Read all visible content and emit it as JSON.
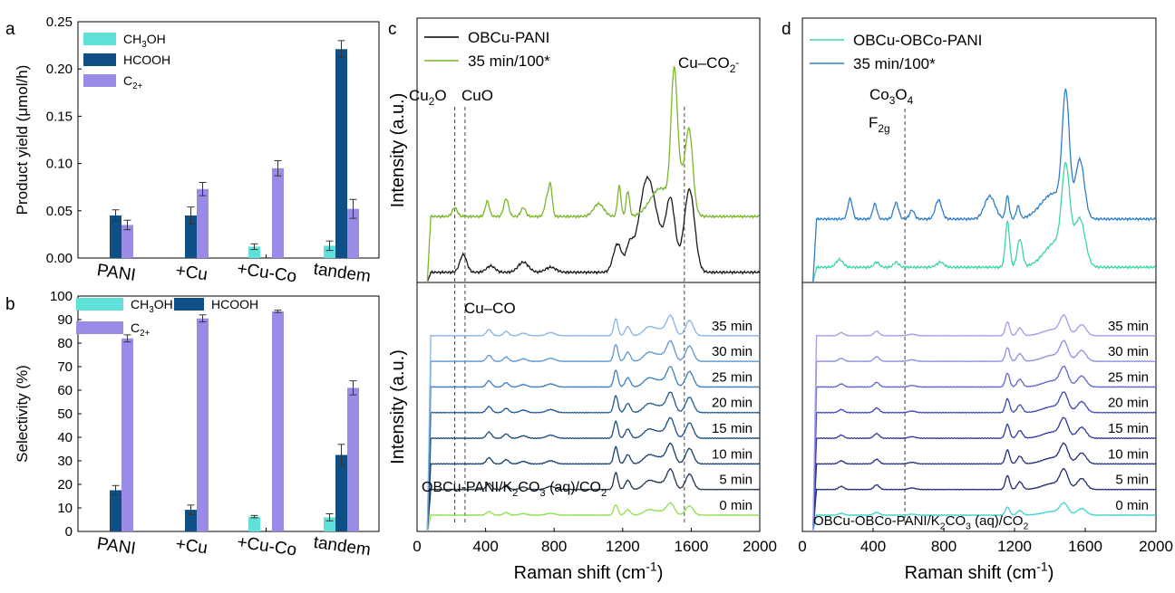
{
  "panels": {
    "a": {
      "letter": "a"
    },
    "b": {
      "letter": "b"
    },
    "c": {
      "letter": "c"
    },
    "d": {
      "letter": "d"
    }
  },
  "colors": {
    "ch3oh": "#5fe0d8",
    "hcooh": "#0f4f86",
    "c2": "#9b8be6",
    "errbar": "#333333"
  },
  "chart_data": [
    {
      "id": "a",
      "type": "bar",
      "ylabel": "Product yield (μmol/h)",
      "categories": [
        "PANI",
        "+Cu",
        "+Cu-Co",
        "tandem"
      ],
      "ylim": [
        0,
        0.25
      ],
      "yticks": [
        0.0,
        0.05,
        0.1,
        0.15,
        0.2,
        0.25
      ],
      "ytick_labels": [
        "0.00",
        "0.05",
        "0.10",
        "0.15",
        "0.20",
        "0.25"
      ],
      "legend_placement": "top-left",
      "series": [
        {
          "name": "CH3OH",
          "label_main": "CH",
          "label_sub": "3",
          "label_tail": "OH",
          "values": [
            0,
            0,
            0.012,
            0.013
          ],
          "errors": [
            0,
            0,
            0.003,
            0.005
          ]
        },
        {
          "name": "HCOOH",
          "label_main": "HCOOH",
          "label_sub": "",
          "label_tail": "",
          "values": [
            0.045,
            0.045,
            0,
            0.221
          ],
          "errors": [
            0.006,
            0.009,
            0,
            0.009
          ]
        },
        {
          "name": "C2+",
          "label_main": "C",
          "label_sub": "2+",
          "label_tail": "",
          "values": [
            0.035,
            0.073,
            0.095,
            0.052
          ],
          "errors": [
            0.005,
            0.007,
            0.008,
            0.01
          ]
        }
      ]
    },
    {
      "id": "b",
      "type": "bar",
      "ylabel": "Selectivity (%)",
      "categories": [
        "PANI",
        "+Cu",
        "+Cu-Co",
        "tandem"
      ],
      "ylim": [
        0,
        100
      ],
      "yticks": [
        0,
        10,
        20,
        30,
        40,
        50,
        60,
        70,
        80,
        90,
        100
      ],
      "ytick_labels": [
        "0",
        "10",
        "20",
        "30",
        "40",
        "50",
        "60",
        "70",
        "80",
        "90",
        "100"
      ],
      "legend_placement": "top-left",
      "series": [
        {
          "name": "CH3OH",
          "label_main": "CH",
          "label_sub": "3",
          "label_tail": "OH",
          "values": [
            0,
            0,
            6.3,
            6.0
          ],
          "errors": [
            0,
            0,
            0.5,
            1.5
          ]
        },
        {
          "name": "HCOOH",
          "label_main": "HCOOH",
          "label_sub": "",
          "label_tail": "",
          "values": [
            17.5,
            9.2,
            0,
            32.5
          ],
          "errors": [
            2.0,
            2.0,
            0,
            4.5
          ]
        },
        {
          "name": "C2+",
          "label_main": "C",
          "label_sub": "2+",
          "label_tail": "",
          "values": [
            82.0,
            90.5,
            93.5,
            61.0
          ],
          "errors": [
            1.5,
            1.5,
            0.5,
            3.0
          ]
        }
      ]
    },
    {
      "id": "c",
      "type": "line",
      "xlabel": "Raman shift (cm",
      "xlabel_sup": "-1",
      "xlabel_tail": ")",
      "ylabel": "Intensity (a.u.)",
      "xlim": [
        0,
        2000
      ],
      "xticks": [
        0,
        400,
        800,
        1200,
        1600,
        2000
      ],
      "xtick_labels": [
        "0",
        "400",
        "800",
        "1200",
        "1600",
        "2000"
      ],
      "top": {
        "legend": [
          {
            "name": "OBCu-PANI",
            "color": "#000000"
          },
          {
            "name": "35 min/100*",
            "color": "#7ab52a"
          }
        ],
        "annotations": [
          {
            "main": "Cu",
            "sub": "2",
            "tail": "O"
          },
          {
            "main": "CuO",
            "sub": "",
            "tail": ""
          },
          {
            "main": "Cu–CO",
            "sub": "2",
            "sup": "-"
          }
        ],
        "series": [
          {
            "name": "OBCu-PANI",
            "color": "#1a1a1a",
            "baseline": 0.08,
            "scale": 1.0,
            "peaks": [
              [
                270,
                0.14,
                20
              ],
              [
                430,
                0.05,
                25
              ],
              [
                620,
                0.08,
                30
              ],
              [
                780,
                0.04,
                30
              ],
              [
                1170,
                0.22,
                25
              ],
              [
                1240,
                0.17,
                20
              ],
              [
                1340,
                0.56,
                45
              ],
              [
                1480,
                0.44,
                25
              ],
              [
                1590,
                0.64,
                30
              ],
              [
                1400,
                0.24,
                80
              ]
            ]
          },
          {
            "name": "35 min/100*",
            "color": "#7ab52a",
            "baseline": 0.52,
            "scale": 1.0,
            "peaks": [
              [
                220,
                0.07,
                15
              ],
              [
                410,
                0.12,
                12
              ],
              [
                520,
                0.14,
                14
              ],
              [
                620,
                0.07,
                14
              ],
              [
                760,
                0.15,
                14
              ],
              [
                780,
                0.2,
                10
              ],
              [
                1060,
                0.1,
                30
              ],
              [
                1180,
                0.24,
                10
              ],
              [
                1230,
                0.2,
                10
              ],
              [
                1420,
                0.22,
                60
              ],
              [
                1500,
                0.95,
                18
              ],
              [
                1590,
                0.5,
                20
              ],
              [
                1550,
                0.3,
                40
              ]
            ]
          }
        ]
      },
      "bottom": {
        "annotation": "Cu–CO",
        "sample_label": {
          "pre": "OBCu-PANI/K",
          "sub1": "2",
          "mid": "CO",
          "sub2": "3",
          "post": " (aq)/CO",
          "sub3": "2"
        },
        "series": [
          {
            "name": "0 min",
            "color": "#8fe04a",
            "offset": 0.0
          },
          {
            "name": "5 min",
            "color": "#1c3550",
            "offset": 1.0
          },
          {
            "name": "10 min",
            "color": "#173f6b",
            "offset": 2.0
          },
          {
            "name": "15 min",
            "color": "#1b4d82",
            "offset": 3.0
          },
          {
            "name": "20 min",
            "color": "#1f5b93",
            "offset": 4.0
          },
          {
            "name": "25 min",
            "color": "#3f7fc0",
            "offset": 5.0
          },
          {
            "name": "30 min",
            "color": "#5e95d3",
            "offset": 6.0
          },
          {
            "name": "35 min",
            "color": "#86b4e6",
            "offset": 7.0
          }
        ]
      },
      "dashed_lines_x": [
        220,
        280,
        1560
      ]
    },
    {
      "id": "d",
      "type": "line",
      "xlabel": "Raman shift (cm",
      "xlabel_sup": "-1",
      "xlabel_tail": ")",
      "xlim": [
        0,
        2000
      ],
      "xticks": [
        0,
        400,
        800,
        1200,
        1600,
        2000
      ],
      "xtick_labels": [
        "0",
        "400",
        "800",
        "1200",
        "1600",
        "2000"
      ],
      "top": {
        "legend": [
          {
            "name": "OBCu-OBCo-PANI",
            "color": "#3cd6a0"
          },
          {
            "name": "35 min/100*",
            "color": "#2e7fc8"
          }
        ],
        "annotations": [
          {
            "main": "Co",
            "sub": "3",
            "tail": "O",
            "sub2": "4"
          },
          {
            "main": "F",
            "sub": "2g"
          }
        ],
        "series": [
          {
            "name": "OBCu-OBCo-PANI",
            "color": "#3cd6a0",
            "baseline": 0.12,
            "scale": 1.0,
            "peaks": [
              [
                210,
                0.06,
                20
              ],
              [
                420,
                0.04,
                15
              ],
              [
                530,
                0.04,
                15
              ],
              [
                780,
                0.04,
                20
              ],
              [
                1160,
                0.36,
                12
              ],
              [
                1230,
                0.22,
                15
              ],
              [
                1440,
                0.2,
                70
              ],
              [
                1490,
                0.66,
                22
              ],
              [
                1570,
                0.35,
                30
              ]
            ]
          },
          {
            "name": "35 min/100*",
            "color": "#2e7fc8",
            "baseline": 0.5,
            "scale": 1.0,
            "peaks": [
              [
                270,
                0.16,
                13
              ],
              [
                410,
                0.12,
                12
              ],
              [
                530,
                0.13,
                14
              ],
              [
                620,
                0.07,
                14
              ],
              [
                770,
                0.15,
                18
              ],
              [
                1060,
                0.18,
                30
              ],
              [
                1160,
                0.18,
                10
              ],
              [
                1220,
                0.1,
                10
              ],
              [
                1420,
                0.2,
                70
              ],
              [
                1490,
                0.9,
                20
              ],
              [
                1570,
                0.45,
                25
              ]
            ]
          }
        ]
      },
      "bottom": {
        "sample_label": {
          "pre": "OBCu-OBCo-PANI/K",
          "sub1": "2",
          "mid": "CO",
          "sub2": "3",
          "post": " (aq)/CO",
          "sub3": "2"
        },
        "series": [
          {
            "name": "0 min",
            "color": "#3fd4cc",
            "offset": 0.0
          },
          {
            "name": "5 min",
            "color": "#1f2d6e",
            "offset": 1.0
          },
          {
            "name": "10 min",
            "color": "#25307a",
            "offset": 2.0
          },
          {
            "name": "15 min",
            "color": "#2d3aa0",
            "offset": 3.0
          },
          {
            "name": "20 min",
            "color": "#3a48b6",
            "offset": 4.0
          },
          {
            "name": "25 min",
            "color": "#5e66cc",
            "offset": 5.0
          },
          {
            "name": "30 min",
            "color": "#8e8ee0",
            "offset": 6.0
          },
          {
            "name": "35 min",
            "color": "#a89ae6",
            "offset": 7.0
          }
        ]
      },
      "dashed_lines_x": [
        580
      ]
    }
  ]
}
